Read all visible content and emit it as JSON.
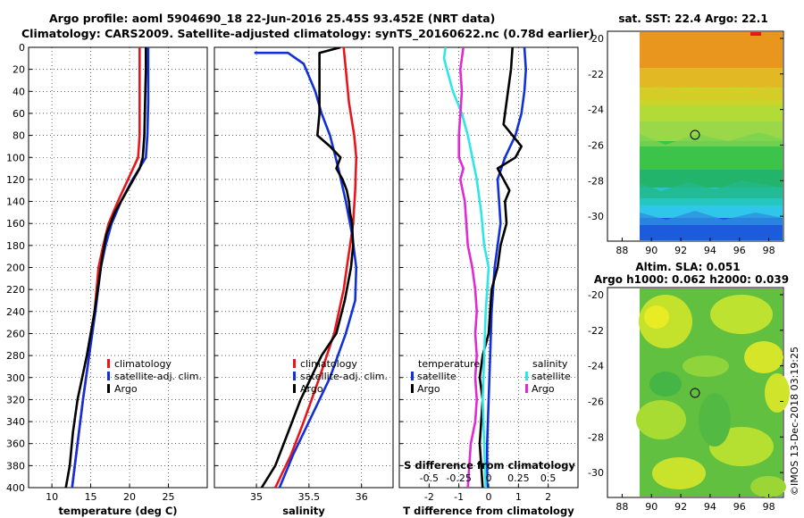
{
  "header": {
    "title_line1": "Argo profile: aoml 5904690_18 22-Jun-2016 25.45S 93.452E (NRT data)",
    "title_line2": "Climatology: CARS2009. Satellite-adjusted climatology: synTS_20160622.nc (0.78d earlier)"
  },
  "credit": "©IMOS 13-Dec-2018 03:19:25",
  "legend_temp": [
    "climatology",
    "satellite-adj. clim.",
    "Argo"
  ],
  "legend_sal": [
    "climatology",
    "satellite-adj. clim.",
    "Argo"
  ],
  "legend_diff": {
    "temperature_title": "temperature",
    "salinity_title": "salinity",
    "items_temp": [
      "satellite",
      "Argo"
    ],
    "items_sal": [
      "satellite",
      "Argo"
    ]
  },
  "colors": {
    "climatology": "#e8161b",
    "satellite": "#1230d8",
    "argo": "#000000",
    "sal_satellite": "#2ee6e6",
    "sal_argo": "#e02ad6"
  },
  "map_sst": {
    "title": "sat. SST: 22.4 Argo: 22.1",
    "xticks": [
      "88",
      "90",
      "92",
      "94",
      "96",
      "98"
    ],
    "yticks": [
      "-20",
      "-22",
      "-24",
      "-26",
      "-28",
      "-30"
    ]
  },
  "map_sla": {
    "title_line1": "Altim. SLA: 0.051",
    "title_line2": "Argo h1000: 0.062 h2000: 0.039",
    "xticks": [
      "88",
      "90",
      "92",
      "94",
      "96",
      "98"
    ],
    "yticks": [
      "-20",
      "-22",
      "-24",
      "-26",
      "-28",
      "-30"
    ]
  },
  "chart_data": [
    {
      "type": "line",
      "title": "",
      "xlabel": "temperature (deg C)",
      "ylabel": "",
      "xlim": [
        7,
        30
      ],
      "ylim": [
        400,
        0
      ],
      "xticks": [
        "10",
        "15",
        "20",
        "25"
      ],
      "yticks": [
        "0",
        "20",
        "40",
        "60",
        "80",
        "100",
        "120",
        "140",
        "160",
        "180",
        "200",
        "220",
        "240",
        "260",
        "280",
        "300",
        "320",
        "340",
        "360",
        "380",
        "400"
      ],
      "series": [
        {
          "name": "climatology",
          "color": "climatology",
          "points": [
            [
              21.3,
              0
            ],
            [
              21.3,
              20
            ],
            [
              21.3,
              50
            ],
            [
              21.3,
              80
            ],
            [
              21.1,
              100
            ],
            [
              19.8,
              120
            ],
            [
              18.5,
              140
            ],
            [
              17.3,
              160
            ],
            [
              16.6,
              180
            ],
            [
              16.0,
              200
            ],
            [
              15.5,
              240
            ],
            [
              14.8,
              280
            ],
            [
              14.0,
              320
            ],
            [
              13.3,
              360
            ],
            [
              12.6,
              400
            ]
          ]
        },
        {
          "name": "satellite-adj. clim.",
          "color": "satellite",
          "points": [
            [
              22.4,
              0
            ],
            [
              22.4,
              20
            ],
            [
              22.4,
              50
            ],
            [
              22.3,
              80
            ],
            [
              22.1,
              100
            ],
            [
              20.4,
              120
            ],
            [
              18.9,
              140
            ],
            [
              17.7,
              160
            ],
            [
              16.9,
              180
            ],
            [
              16.3,
              200
            ],
            [
              15.6,
              240
            ],
            [
              14.8,
              280
            ],
            [
              14.0,
              320
            ],
            [
              13.3,
              360
            ],
            [
              12.6,
              400
            ]
          ]
        },
        {
          "name": "Argo",
          "color": "argo",
          "points": [
            [
              22.1,
              0
            ],
            [
              22.1,
              20
            ],
            [
              22.0,
              50
            ],
            [
              21.9,
              80
            ],
            [
              21.7,
              100
            ],
            [
              21.3,
              110
            ],
            [
              19.7,
              130
            ],
            [
              18.1,
              150
            ],
            [
              17.0,
              170
            ],
            [
              16.5,
              190
            ],
            [
              16.3,
              200
            ],
            [
              15.5,
              240
            ],
            [
              14.5,
              280
            ],
            [
              13.3,
              320
            ],
            [
              12.7,
              350
            ],
            [
              12.3,
              380
            ],
            [
              11.8,
              400
            ]
          ]
        }
      ]
    },
    {
      "type": "line",
      "title": "",
      "xlabel": "salinity",
      "ylabel": "",
      "xlim": [
        34.6,
        36.3
      ],
      "ylim": [
        400,
        0
      ],
      "xticks": [
        "35",
        "35.5",
        "36"
      ],
      "series": [
        {
          "name": "climatology",
          "color": "climatology",
          "points": [
            [
              35.83,
              0
            ],
            [
              35.85,
              20
            ],
            [
              35.88,
              50
            ],
            [
              35.93,
              80
            ],
            [
              35.95,
              100
            ],
            [
              35.94,
              130
            ],
            [
              35.92,
              160
            ],
            [
              35.89,
              180
            ],
            [
              35.86,
              200
            ],
            [
              35.83,
              220
            ],
            [
              35.74,
              260
            ],
            [
              35.6,
              300
            ],
            [
              35.45,
              340
            ],
            [
              35.33,
              370
            ],
            [
              35.18,
              400
            ]
          ]
        },
        {
          "name": "satellite-adj. clim.",
          "color": "satellite",
          "points": [
            [
              34.98,
              5
            ],
            [
              35.3,
              5
            ],
            [
              35.45,
              15
            ],
            [
              35.56,
              40
            ],
            [
              35.62,
              60
            ],
            [
              35.7,
              80
            ],
            [
              35.78,
              110
            ],
            [
              35.85,
              140
            ],
            [
              35.91,
              170
            ],
            [
              35.95,
              200
            ],
            [
              35.94,
              230
            ],
            [
              35.85,
              260
            ],
            [
              35.7,
              300
            ],
            [
              35.5,
              340
            ],
            [
              35.35,
              370
            ],
            [
              35.22,
              400
            ]
          ]
        },
        {
          "name": "Argo",
          "color": "argo",
          "points": [
            [
              35.8,
              0
            ],
            [
              35.6,
              5
            ],
            [
              35.6,
              30
            ],
            [
              35.6,
              60
            ],
            [
              35.58,
              80
            ],
            [
              35.7,
              90
            ],
            [
              35.8,
              100
            ],
            [
              35.76,
              110
            ],
            [
              35.82,
              120
            ],
            [
              35.86,
              130
            ],
            [
              35.88,
              140
            ],
            [
              35.89,
              150
            ],
            [
              35.91,
              160
            ],
            [
              35.92,
              180
            ],
            [
              35.9,
              200
            ],
            [
              35.84,
              230
            ],
            [
              35.76,
              260
            ],
            [
              35.62,
              280
            ],
            [
              35.52,
              300
            ],
            [
              35.42,
              320
            ],
            [
              35.3,
              350
            ],
            [
              35.18,
              380
            ],
            [
              35.05,
              400
            ]
          ]
        }
      ]
    },
    {
      "type": "line",
      "title": "",
      "xlabel": "T difference from climatology",
      "ylabel": "",
      "xlim": [
        -3,
        3
      ],
      "ylim": [
        400,
        0
      ],
      "xticks": [
        "-2",
        "-1",
        "0",
        "1",
        "2"
      ],
      "secondary_xlabel": "S difference from climatology",
      "secondary_xticks": [
        "-0.5",
        "-0.25",
        "0",
        "0.25",
        "0.5"
      ],
      "series": [
        {
          "name": "temperature satellite",
          "color": "satellite",
          "points": [
            [
              1.2,
              0
            ],
            [
              1.25,
              20
            ],
            [
              1.2,
              40
            ],
            [
              1.1,
              60
            ],
            [
              0.9,
              80
            ],
            [
              0.55,
              100
            ],
            [
              0.3,
              120
            ],
            [
              0.35,
              140
            ],
            [
              0.4,
              160
            ],
            [
              0.3,
              180
            ],
            [
              0.2,
              200
            ],
            [
              0.1,
              240
            ],
            [
              0.05,
              280
            ],
            [
              0.0,
              320
            ],
            [
              -0.05,
              360
            ],
            [
              -0.05,
              400
            ]
          ]
        },
        {
          "name": "temperature Argo",
          "color": "argo",
          "points": [
            [
              0.8,
              0
            ],
            [
              0.75,
              20
            ],
            [
              0.6,
              50
            ],
            [
              0.5,
              70
            ],
            [
              0.8,
              80
            ],
            [
              1.1,
              90
            ],
            [
              0.9,
              100
            ],
            [
              0.3,
              110
            ],
            [
              0.5,
              120
            ],
            [
              0.7,
              130
            ],
            [
              0.55,
              140
            ],
            [
              0.6,
              160
            ],
            [
              0.4,
              180
            ],
            [
              0.3,
              200
            ],
            [
              0.1,
              220
            ],
            [
              0.0,
              260
            ],
            [
              -0.2,
              280
            ],
            [
              -0.3,
              300
            ],
            [
              -0.2,
              320
            ],
            [
              -0.3,
              360
            ],
            [
              -0.2,
              400
            ]
          ]
        },
        {
          "name": "salinity satellite",
          "color": "sal_satellite",
          "points": [
            [
              -1.45,
              0
            ],
            [
              -1.5,
              10
            ],
            [
              -1.4,
              20
            ],
            [
              -1.2,
              40
            ],
            [
              -0.9,
              60
            ],
            [
              -0.7,
              80
            ],
            [
              -0.55,
              100
            ],
            [
              -0.4,
              120
            ],
            [
              -0.25,
              150
            ],
            [
              -0.15,
              180
            ],
            [
              0.0,
              200
            ],
            [
              -0.1,
              240
            ],
            [
              -0.15,
              280
            ],
            [
              -0.2,
              320
            ],
            [
              -0.15,
              360
            ],
            [
              -0.1,
              400
            ]
          ]
        },
        {
          "name": "salinity Argo",
          "color": "sal_argo",
          "points": [
            [
              -0.85,
              0
            ],
            [
              -0.95,
              20
            ],
            [
              -0.9,
              40
            ],
            [
              -1.0,
              80
            ],
            [
              -1.0,
              100
            ],
            [
              -0.85,
              110
            ],
            [
              -0.95,
              120
            ],
            [
              -0.8,
              140
            ],
            [
              -0.75,
              160
            ],
            [
              -0.7,
              180
            ],
            [
              -0.55,
              200
            ],
            [
              -0.45,
              220
            ],
            [
              -0.4,
              240
            ],
            [
              -0.45,
              260
            ],
            [
              -0.4,
              280
            ],
            [
              -0.45,
              300
            ],
            [
              -0.4,
              320
            ],
            [
              -0.45,
              340
            ],
            [
              -0.6,
              360
            ],
            [
              -0.65,
              380
            ],
            [
              -0.7,
              400
            ]
          ]
        }
      ]
    }
  ]
}
